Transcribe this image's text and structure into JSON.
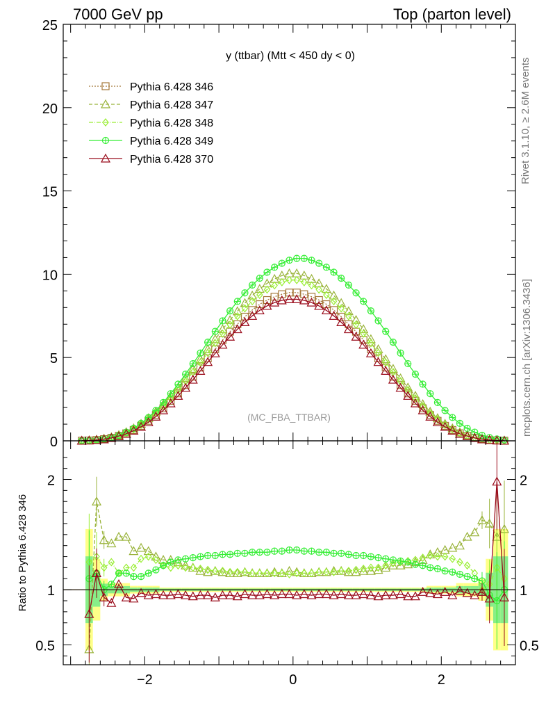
{
  "header": {
    "left": "7000 GeV pp",
    "right": "Top (parton level)"
  },
  "side_labels": {
    "rivet": "Rivet 3.1.10, ≥ 2.6M events",
    "mcplots": "mcplots.cern.ch [arXiv:1306.3436]"
  },
  "colors": {
    "s346": "#a5793a",
    "s347": "#99b33a",
    "s348": "#99ee33",
    "s349": "#33ee33",
    "s370": "#990a1a",
    "band_yellow": "#ffff88",
    "band_green": "#88ee88"
  },
  "chart_data": [
    {
      "type": "line",
      "title": "y (ttbar) (Mtt < 450 dy < 0)",
      "watermark": "(MC_FBA_TTBAR)",
      "xlim": [
        -3.1,
        3.0
      ],
      "ylim": [
        0,
        25
      ],
      "yticks": [
        0,
        5,
        10,
        15,
        20,
        25
      ],
      "xlabel": "",
      "ylabel": "",
      "legend_position": "top-left",
      "x": [
        -2.85,
        -2.75,
        -2.65,
        -2.55,
        -2.45,
        -2.35,
        -2.25,
        -2.15,
        -2.05,
        -1.95,
        -1.85,
        -1.75,
        -1.65,
        -1.55,
        -1.45,
        -1.35,
        -1.25,
        -1.15,
        -1.05,
        -0.95,
        -0.85,
        -0.75,
        -0.65,
        -0.55,
        -0.45,
        -0.35,
        -0.25,
        -0.15,
        -0.05,
        0.05,
        0.15,
        0.25,
        0.35,
        0.45,
        0.55,
        0.65,
        0.75,
        0.85,
        0.95,
        1.05,
        1.15,
        1.25,
        1.35,
        1.45,
        1.55,
        1.65,
        1.75,
        1.85,
        1.95,
        2.05,
        2.15,
        2.25,
        2.35,
        2.45,
        2.55,
        2.65,
        2.75,
        2.85
      ],
      "series": [
        {
          "name": "Pythia 6.428 346",
          "marker": "square",
          "dash": "2,2",
          "values": [
            0.01,
            0.02,
            0.05,
            0.1,
            0.18,
            0.3,
            0.45,
            0.65,
            0.9,
            1.2,
            1.55,
            1.95,
            2.4,
            2.85,
            3.35,
            3.85,
            4.4,
            4.95,
            5.5,
            6.05,
            6.55,
            7.0,
            7.45,
            7.85,
            8.2,
            8.45,
            8.65,
            8.8,
            8.9,
            8.9,
            8.8,
            8.65,
            8.45,
            8.2,
            7.85,
            7.45,
            7.0,
            6.55,
            6.05,
            5.5,
            4.95,
            4.4,
            3.85,
            3.35,
            2.85,
            2.4,
            1.95,
            1.55,
            1.2,
            0.9,
            0.65,
            0.45,
            0.3,
            0.18,
            0.1,
            0.05,
            0.02,
            0.01
          ]
        },
        {
          "name": "Pythia 6.428 347",
          "marker": "triangle",
          "dash": "5,3",
          "values": [
            0.01,
            0.03,
            0.07,
            0.13,
            0.22,
            0.35,
            0.52,
            0.75,
            1.02,
            1.36,
            1.75,
            2.2,
            2.7,
            3.2,
            3.75,
            4.32,
            4.9,
            5.5,
            6.1,
            6.7,
            7.25,
            7.78,
            8.27,
            8.72,
            9.12,
            9.45,
            9.72,
            9.92,
            10.05,
            10.05,
            9.92,
            9.72,
            9.45,
            9.12,
            8.72,
            8.27,
            7.78,
            7.25,
            6.7,
            6.1,
            5.5,
            4.9,
            4.32,
            3.75,
            3.2,
            2.7,
            2.2,
            1.75,
            1.36,
            1.02,
            0.75,
            0.52,
            0.35,
            0.22,
            0.13,
            0.07,
            0.03,
            0.01
          ]
        },
        {
          "name": "Pythia 6.428 348",
          "marker": "diamond",
          "dash": "6,2,1,2",
          "values": [
            0.01,
            0.02,
            0.06,
            0.12,
            0.2,
            0.33,
            0.49,
            0.7,
            0.96,
            1.28,
            1.66,
            2.08,
            2.55,
            3.05,
            3.58,
            4.13,
            4.7,
            5.28,
            5.86,
            6.43,
            6.97,
            7.48,
            7.95,
            8.38,
            8.76,
            9.08,
            9.33,
            9.52,
            9.65,
            9.65,
            9.52,
            9.33,
            9.08,
            8.76,
            8.38,
            7.95,
            7.48,
            6.97,
            6.43,
            5.86,
            5.28,
            4.7,
            4.13,
            3.58,
            3.05,
            2.55,
            2.08,
            1.66,
            1.28,
            0.96,
            0.7,
            0.49,
            0.33,
            0.2,
            0.12,
            0.06,
            0.02,
            0.01
          ]
        },
        {
          "name": "Pythia 6.428 349",
          "marker": "circle",
          "dash": "",
          "values": [
            0.01,
            0.02,
            0.05,
            0.11,
            0.2,
            0.33,
            0.52,
            0.75,
            1.05,
            1.4,
            1.82,
            2.3,
            2.83,
            3.4,
            4.0,
            4.63,
            5.27,
            5.92,
            6.57,
            7.2,
            7.8,
            8.37,
            8.88,
            9.35,
            9.76,
            10.12,
            10.42,
            10.66,
            10.84,
            10.95,
            10.95,
            10.84,
            10.66,
            10.42,
            10.12,
            9.76,
            9.35,
            8.88,
            8.37,
            7.8,
            7.2,
            6.57,
            5.92,
            5.27,
            4.63,
            4.0,
            3.4,
            2.83,
            2.3,
            1.82,
            1.4,
            1.05,
            0.75,
            0.52,
            0.33,
            0.2,
            0.11,
            0.05
          ]
        },
        {
          "name": "Pythia 6.428 370",
          "marker": "triangle",
          "dash": "",
          "values": [
            0.01,
            0.02,
            0.05,
            0.09,
            0.17,
            0.28,
            0.42,
            0.61,
            0.84,
            1.12,
            1.45,
            1.83,
            2.25,
            2.7,
            3.18,
            3.67,
            4.2,
            4.73,
            5.25,
            5.77,
            6.25,
            6.7,
            7.12,
            7.5,
            7.83,
            8.1,
            8.3,
            8.43,
            8.5,
            8.5,
            8.43,
            8.3,
            8.1,
            7.83,
            7.5,
            7.12,
            6.7,
            6.25,
            5.77,
            5.25,
            4.73,
            4.2,
            3.67,
            3.18,
            2.7,
            2.25,
            1.83,
            1.45,
            1.12,
            0.84,
            0.61,
            0.42,
            0.28,
            0.17,
            0.09,
            0.05,
            0.02,
            0.01
          ]
        }
      ]
    },
    {
      "type": "line",
      "title": "",
      "xlim": [
        -3.1,
        3.0
      ],
      "ylim": [
        0.32,
        2.35
      ],
      "yticks": [
        0.5,
        1,
        2
      ],
      "xticks": [
        -2,
        0,
        2
      ],
      "ylabel": "Ratio to Pythia 6.428 346",
      "reference": 1,
      "x": [
        -2.75,
        -2.65,
        -2.55,
        -2.45,
        -2.35,
        -2.25,
        -2.15,
        -2.05,
        -1.95,
        -1.85,
        -1.75,
        -1.65,
        -1.55,
        -1.45,
        -1.35,
        -1.25,
        -1.15,
        -1.05,
        -0.95,
        -0.85,
        -0.75,
        -0.65,
        -0.55,
        -0.45,
        -0.35,
        -0.25,
        -0.15,
        -0.05,
        0.05,
        0.15,
        0.25,
        0.35,
        0.45,
        0.55,
        0.65,
        0.75,
        0.85,
        0.95,
        1.05,
        1.15,
        1.25,
        1.35,
        1.45,
        1.55,
        1.65,
        1.75,
        1.85,
        1.95,
        2.05,
        2.15,
        2.25,
        2.35,
        2.45,
        2.55,
        2.65,
        2.75,
        2.85
      ],
      "series": [
        {
          "name": "Pythia 6.428 347",
          "marker": "triangle",
          "dash": "5,3",
          "values": [
            0.46,
            1.8,
            1.45,
            1.42,
            1.48,
            1.48,
            1.35,
            1.38,
            1.35,
            1.3,
            1.27,
            1.27,
            1.25,
            1.22,
            1.2,
            1.17,
            1.16,
            1.17,
            1.16,
            1.15,
            1.15,
            1.16,
            1.15,
            1.15,
            1.15,
            1.16,
            1.15,
            1.17,
            1.16,
            1.15,
            1.15,
            1.16,
            1.16,
            1.17,
            1.17,
            1.16,
            1.16,
            1.17,
            1.17,
            1.18,
            1.2,
            1.22,
            1.22,
            1.23,
            1.25,
            1.27,
            1.32,
            1.34,
            1.36,
            1.38,
            1.4,
            1.48,
            1.52,
            1.63,
            1.6,
            1.48,
            1.55
          ]
        },
        {
          "name": "Pythia 6.428 348",
          "marker": "diamond",
          "dash": "6,2,1,2",
          "values": [
            1.25,
            1.3,
            1.2,
            1.25,
            1.15,
            1.2,
            1.2,
            1.28,
            1.3,
            1.27,
            1.22,
            1.2,
            1.22,
            1.2,
            1.2,
            1.19,
            1.18,
            1.17,
            1.17,
            1.16,
            1.16,
            1.16,
            1.15,
            1.15,
            1.15,
            1.15,
            1.15,
            1.14,
            1.15,
            1.15,
            1.15,
            1.16,
            1.16,
            1.16,
            1.17,
            1.17,
            1.18,
            1.19,
            1.2,
            1.2,
            1.22,
            1.24,
            1.25,
            1.26,
            1.27,
            1.29,
            1.31,
            1.3,
            1.3,
            1.28,
            1.25,
            1.22,
            1.15,
            1.0,
            1.05,
            1.2,
            1.1
          ]
        },
        {
          "name": "Pythia 6.428 349",
          "marker": "circle",
          "dash": "",
          "values": [
            1.1,
            1.15,
            1.0,
            1.05,
            1.15,
            1.15,
            1.12,
            1.12,
            1.15,
            1.18,
            1.22,
            1.25,
            1.27,
            1.28,
            1.29,
            1.3,
            1.31,
            1.31,
            1.32,
            1.32,
            1.33,
            1.33,
            1.34,
            1.34,
            1.34,
            1.35,
            1.35,
            1.36,
            1.36,
            1.35,
            1.35,
            1.34,
            1.34,
            1.33,
            1.33,
            1.32,
            1.31,
            1.31,
            1.3,
            1.29,
            1.28,
            1.27,
            1.26,
            1.25,
            1.23,
            1.22,
            1.2,
            1.19,
            1.17,
            1.16,
            1.14,
            1.12,
            1.1,
            1.08,
            0.95,
            0.9,
            1.0
          ]
        },
        {
          "name": "Pythia 6.428 370",
          "marker": "triangle",
          "dash": "",
          "values": [
            0.78,
            1.15,
            0.93,
            0.88,
            1.05,
            0.93,
            0.92,
            0.97,
            0.95,
            0.96,
            0.95,
            0.95,
            0.96,
            0.95,
            0.94,
            0.95,
            0.95,
            0.93,
            0.95,
            0.95,
            0.94,
            0.96,
            0.95,
            0.95,
            0.96,
            0.95,
            0.96,
            0.96,
            0.95,
            0.96,
            0.95,
            0.96,
            0.96,
            0.95,
            0.96,
            0.95,
            0.95,
            0.96,
            0.95,
            0.94,
            0.95,
            0.95,
            0.96,
            0.94,
            0.94,
            0.98,
            0.97,
            0.96,
            0.98,
            0.95,
            0.99,
            0.97,
            0.95,
            0.98,
            0.92,
            1.98,
            0.93
          ]
        }
      ]
    }
  ]
}
